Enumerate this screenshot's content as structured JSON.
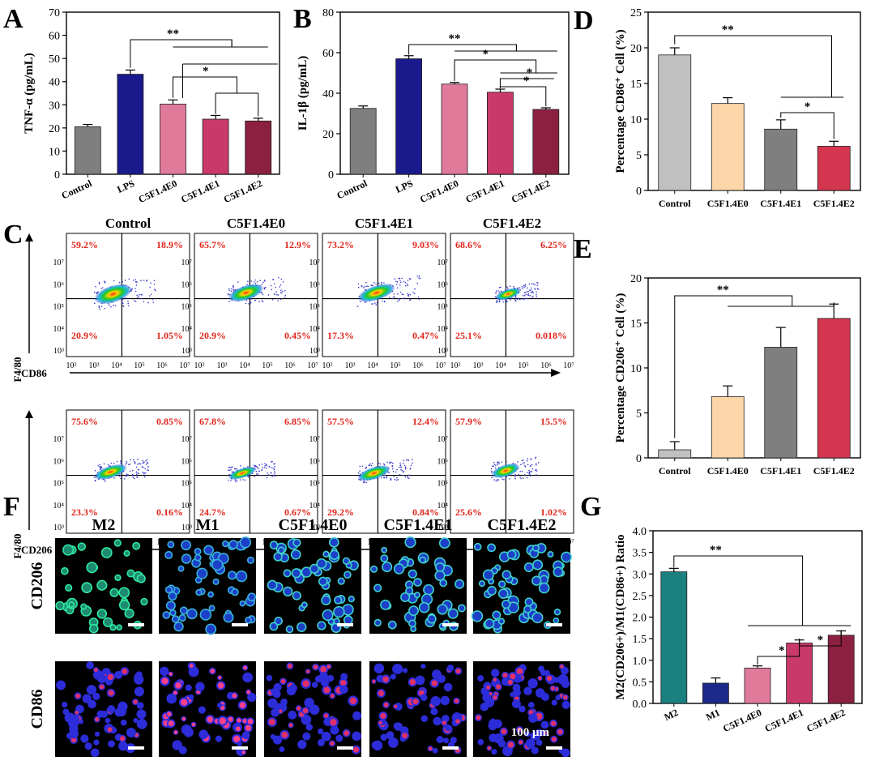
{
  "panel_labels": {
    "a": "A",
    "b": "B",
    "c": "C",
    "d": "D",
    "e": "E",
    "f": "F",
    "g": "G"
  },
  "colors": {
    "control": "#7f7f7f",
    "lps": "#1a1a8c",
    "e0": "#e07a9a",
    "e1": "#c93a6a",
    "e2": "#8b2040",
    "d_control": "#c0c0c0",
    "d_e0": "#fcd5a8",
    "d_e1": "#7f7f7f",
    "d_e2": "#d4364f",
    "g_m2": "#1a8080",
    "g_m1": "#1c2a8a",
    "g_e0": "#e07a9a",
    "g_e1": "#c93a6a",
    "g_e2": "#8b2040",
    "quad": "#e0241b"
  },
  "chart_data": [
    {
      "id": "A",
      "type": "bar",
      "ylabel": "TNF-α (pg/mL)",
      "ylim": [
        0,
        70
      ],
      "yticks": [
        0,
        10,
        20,
        30,
        40,
        50,
        60,
        70
      ],
      "categories": [
        "Control",
        "LPS",
        "C5F1.4E0",
        "C5F1.4E1",
        "C5F1.4E2"
      ],
      "values": [
        20.5,
        43.2,
        30.3,
        23.8,
        23.0
      ],
      "errors": [
        1.0,
        1.8,
        1.8,
        1.6,
        1.2
      ],
      "color_keys": [
        "control",
        "lps",
        "e0",
        "e1",
        "e2"
      ],
      "significance": [
        "**",
        "*"
      ]
    },
    {
      "id": "B",
      "type": "bar",
      "ylabel": "IL-1β (pg/mL)",
      "ylim": [
        0,
        80
      ],
      "yticks": [
        0,
        20,
        40,
        60,
        80
      ],
      "categories": [
        "Control",
        "LPS",
        "C5F1.4E0",
        "C5F1.4E1",
        "C5F1.4E2"
      ],
      "values": [
        32.5,
        57.0,
        44.5,
        40.5,
        32.0
      ],
      "errors": [
        1.2,
        1.5,
        0.8,
        1.5,
        0.8
      ],
      "color_keys": [
        "control",
        "lps",
        "e0",
        "e1",
        "e2"
      ],
      "significance": [
        "**",
        "*",
        "*",
        "*"
      ]
    },
    {
      "id": "D",
      "type": "bar",
      "ylabel": "Percentage CD86⁺ Cell (%)",
      "ylim": [
        0,
        25
      ],
      "yticks": [
        0,
        5,
        10,
        15,
        20,
        25
      ],
      "categories": [
        "Control",
        "C5F1.4E0",
        "C5F1.4E1",
        "C5F1.4E2"
      ],
      "values": [
        19.0,
        12.2,
        8.6,
        6.2
      ],
      "errors": [
        1.0,
        0.8,
        1.3,
        0.7
      ],
      "color_keys": [
        "d_control",
        "d_e0",
        "d_e1",
        "d_e2"
      ],
      "significance": [
        "**",
        "*"
      ]
    },
    {
      "id": "E",
      "type": "bar",
      "ylabel": "Percentage CD206⁺ Cell (%)",
      "ylim": [
        0,
        20
      ],
      "yticks": [
        0,
        5,
        10,
        15,
        20
      ],
      "categories": [
        "Control",
        "C5F1.4E0",
        "C5F1.4E1",
        "C5F1.4E2"
      ],
      "values": [
        0.9,
        6.8,
        12.3,
        15.5
      ],
      "errors": [
        0.9,
        1.2,
        2.2,
        1.6
      ],
      "color_keys": [
        "d_control",
        "d_e0",
        "d_e1",
        "d_e2"
      ],
      "significance": [
        "**"
      ]
    },
    {
      "id": "G",
      "type": "bar",
      "ylabel": "M2(CD206+)/M1(CD86+) Ratio",
      "ylim": [
        0,
        4
      ],
      "yticks": [
        "0.0",
        "0.5",
        "1.0",
        "1.5",
        "2.0",
        "2.5",
        "3.0",
        "3.5",
        "4.0"
      ],
      "categories": [
        "M2",
        "M1",
        "C5F1.4E0",
        "C5F1.4E1",
        "C5F1.4E2"
      ],
      "values": [
        3.05,
        0.47,
        0.82,
        1.4,
        1.58
      ],
      "errors": [
        0.08,
        0.12,
        0.05,
        0.07,
        0.1
      ],
      "color_keys": [
        "g_m2",
        "g_m1",
        "g_e0",
        "g_e1",
        "g_e2"
      ],
      "significance": [
        "**",
        "*",
        "*"
      ]
    }
  ],
  "flow": {
    "columns": [
      "Control",
      "C5F1.4E0",
      "C5F1.4E1",
      "C5F1.4E2"
    ],
    "y_axis": "F4/80",
    "x_axis_row1": "CD86",
    "x_axis_row2": "CD206",
    "log_ticks": [
      "10²",
      "10³",
      "10⁴",
      "10⁵",
      "10⁶",
      "10⁷"
    ],
    "row1": [
      {
        "ul": "59.2%",
        "ur": "18.9%",
        "ll": "20.9%",
        "lr": "1.05%"
      },
      {
        "ul": "65.7%",
        "ur": "12.9%",
        "ll": "20.9%",
        "lr": "0.45%"
      },
      {
        "ul": "73.2%",
        "ur": "9.03%",
        "ll": "17.3%",
        "lr": "0.47%"
      },
      {
        "ul": "68.6%",
        "ur": "6.25%",
        "ll": "25.1%",
        "lr": "0.018%"
      }
    ],
    "row2": [
      {
        "ul": "75.6%",
        "ur": "0.85%",
        "ll": "23.3%",
        "lr": "0.16%"
      },
      {
        "ul": "67.8%",
        "ur": "6.85%",
        "ll": "24.7%",
        "lr": "0.67%"
      },
      {
        "ul": "57.5%",
        "ur": "12.4%",
        "ll": "29.2%",
        "lr": "0.84%"
      },
      {
        "ul": "57.9%",
        "ur": "15.5%",
        "ll": "25.6%",
        "lr": "1.02%"
      }
    ]
  },
  "images": {
    "columns": [
      "M2",
      "M1",
      "C5F1.4E0",
      "C5F1.4E1",
      "C5F1.4E2"
    ],
    "rows": [
      "CD206",
      "CD86"
    ],
    "scale_bar": "100 μm"
  }
}
